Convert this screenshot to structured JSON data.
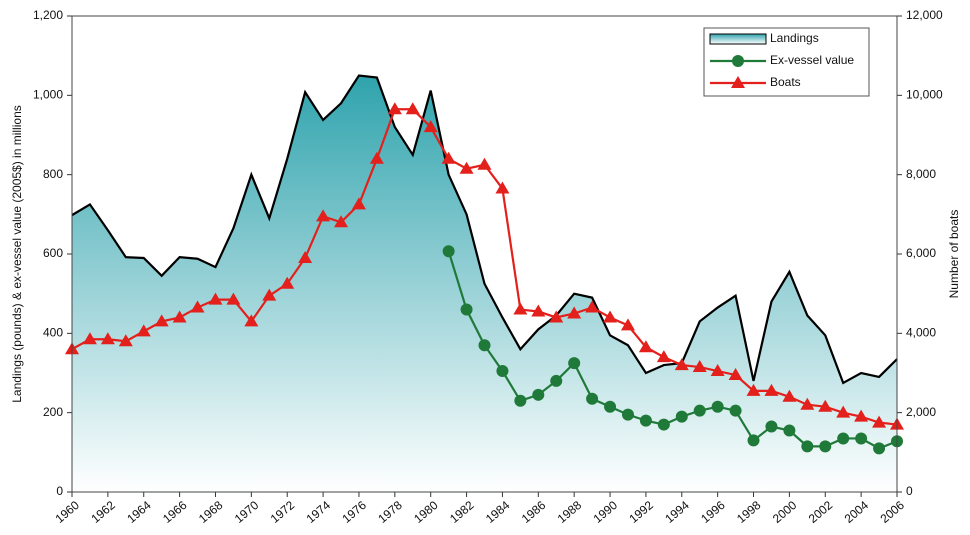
{
  "chart_data": {
    "type": "line",
    "y_label": "Landings (pounds) & ex-vessel value (2005$) in millions",
    "y2_label": "Number of boats",
    "x": [
      1960,
      1961,
      1962,
      1963,
      1964,
      1965,
      1966,
      1967,
      1968,
      1969,
      1970,
      1971,
      1972,
      1973,
      1974,
      1975,
      1976,
      1977,
      1978,
      1979,
      1980,
      1981,
      1982,
      1983,
      1984,
      1985,
      1986,
      1987,
      1988,
      1989,
      1990,
      1991,
      1992,
      1993,
      1994,
      1995,
      1996,
      1997,
      1998,
      1999,
      2000,
      2001,
      2002,
      2003,
      2004,
      2005,
      2006
    ],
    "xlim": [
      1960,
      2006
    ],
    "xticks": [
      1960,
      1962,
      1964,
      1966,
      1968,
      1970,
      1972,
      1974,
      1976,
      1978,
      1980,
      1982,
      1984,
      1986,
      1988,
      1990,
      1992,
      1994,
      1996,
      1998,
      2000,
      2002,
      2004,
      2006
    ],
    "ylim": [
      0,
      1200
    ],
    "yticks": [
      0,
      200,
      400,
      600,
      800,
      {
        "value": 1000,
        "label": "1,000"
      },
      {
        "value": 1200,
        "label": "1,200"
      }
    ],
    "y2lim": [
      0,
      12000
    ],
    "y2ticks": [
      0,
      {
        "value": 2000,
        "label": "2,000"
      },
      {
        "value": 4000,
        "label": "4,000"
      },
      {
        "value": 6000,
        "label": "6,000"
      },
      {
        "value": 8000,
        "label": "8,000"
      },
      {
        "value": 10000,
        "label": "10,000"
      },
      {
        "value": 12000,
        "label": "12,000"
      }
    ],
    "legend": "upper right",
    "series": [
      {
        "name": "Landings",
        "color": "#000000",
        "area_color": "#2fa3ad",
        "values": [
          698,
          725,
          660,
          592,
          590,
          545,
          592,
          588,
          567,
          665,
          800,
          690,
          840,
          1008,
          938,
          980,
          1050,
          1045,
          920,
          850,
          1012,
          800,
          700,
          525,
          440,
          360,
          410,
          445,
          500,
          490,
          395,
          370,
          300,
          320,
          325,
          430,
          465,
          495,
          280,
          480,
          555,
          445,
          395,
          275,
          300,
          290,
          335
        ]
      },
      {
        "name": "Ex-vessel value",
        "color": "#1f7a3a",
        "marker": "circle",
        "values": [
          null,
          null,
          null,
          null,
          null,
          null,
          null,
          null,
          null,
          null,
          null,
          null,
          null,
          null,
          null,
          null,
          null,
          null,
          null,
          null,
          null,
          607,
          460,
          370,
          305,
          230,
          245,
          280,
          325,
          235,
          215,
          195,
          180,
          170,
          190,
          205,
          215,
          205,
          130,
          165,
          155,
          115,
          115,
          135,
          135,
          110,
          128
        ]
      },
      {
        "name": "Boats",
        "color": "#e3201b",
        "marker": "triangle",
        "axis": "y2",
        "values": [
          3600,
          3850,
          3850,
          3800,
          4050,
          4300,
          4400,
          4650,
          4850,
          4850,
          4300,
          4950,
          5250,
          5900,
          6950,
          6800,
          7250,
          8400,
          9650,
          9650,
          9200,
          8400,
          8150,
          8250,
          7650,
          4600,
          4550,
          4400,
          4500,
          4650,
          4400,
          4200,
          3650,
          3400,
          3200,
          3150,
          3050,
          2950,
          2550,
          2550,
          2400,
          2200,
          2150,
          2000,
          1900,
          1750,
          1700
        ]
      }
    ]
  }
}
